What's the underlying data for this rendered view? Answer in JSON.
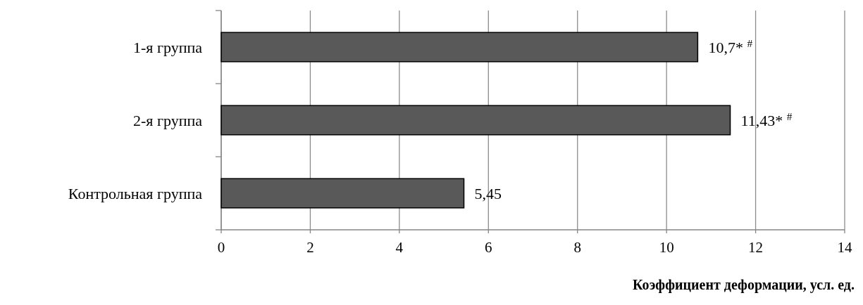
{
  "chart_data": {
    "type": "bar",
    "orientation": "horizontal",
    "categories": [
      "1-я группа",
      "2-я группа",
      "Контрольная группа"
    ],
    "values": [
      10.7,
      11.43,
      5.45
    ],
    "color": "#595959",
    "value_labels": [
      "10,7* $^{#}$",
      "11,43* $^{#}$",
      "5,45"
    ],
    "xlim": [
      0,
      14
    ],
    "xticks": [
      0,
      2,
      4,
      6,
      8,
      10,
      12,
      14
    ],
    "grid": "x",
    "xlabel": "Коэффициент деформации, усл. ед."
  }
}
